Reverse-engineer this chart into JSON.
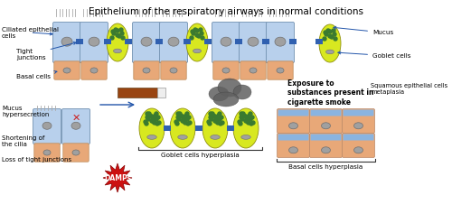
{
  "title": "Epithelium of the respiratory airways in normal conditions",
  "title_fontsize": 7.5,
  "bg_color": "#ffffff",
  "cell_blue_light": "#b8d0ec",
  "cell_blue_mid": "#8ab4e0",
  "tight_junc_color": "#3060b0",
  "goblet_yellow": "#d8e820",
  "goblet_green": "#3a7a30",
  "nucleus_color": "#a0a0a0",
  "nucleus_edge": "#707070",
  "basal_peach": "#e8a878",
  "cilia_color": "#aaaaaa",
  "cigarette_brown": "#994411",
  "cigarette_white": "#eeeeee",
  "smoke_color": "#606060",
  "damps_red": "#cc1111",
  "arrow_color": "#2255aa",
  "squamous_peach": "#e8a878",
  "squamous_blue_top": "#8ab4e0",
  "bracket_color": "#333333",
  "labels": {
    "ciliated": "Ciliated epithelial\ncells",
    "tight": "Tight\njunctions",
    "basal": "Basal cells",
    "mucus_top": "Mucus",
    "goblet": "Goblet cells",
    "mucus_hyper": "Mucus\nhypersecretion",
    "shortening": "Shortening of\nthe cilia",
    "loss_tight": "Loss of tight junctions",
    "damps": "DAMPs",
    "goblet_hyper": "Goblet cells hyperplasia",
    "basal_hyper": "Basal cells hyperplasia",
    "squamous": "Squamous epithelial cells\nmetaplasia",
    "exposure": "Exposure to\nsubstances present in\ncigarette smoke"
  }
}
